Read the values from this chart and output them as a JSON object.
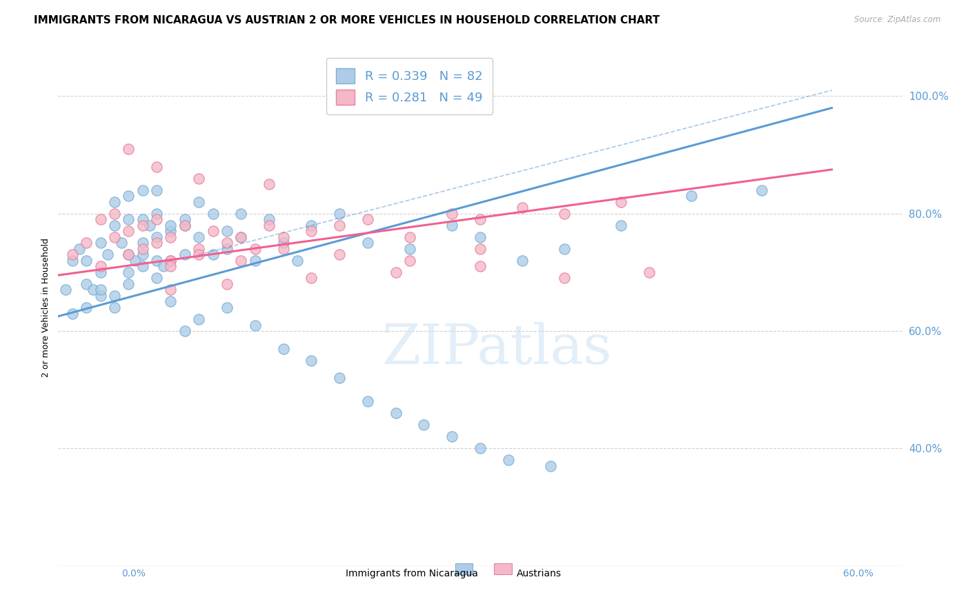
{
  "title": "IMMIGRANTS FROM NICARAGUA VS AUSTRIAN 2 OR MORE VEHICLES IN HOUSEHOLD CORRELATION CHART",
  "source": "Source: ZipAtlas.com",
  "ylabel": "2 or more Vehicles in Household",
  "xmin": 0.0,
  "xmax": 0.06,
  "ymin": 0.2,
  "ymax": 1.08,
  "xtick_labels": [
    "0.0%",
    "",
    "",
    "",
    "",
    "",
    "",
    "",
    "",
    "",
    "",
    ""
  ],
  "xtick_values": [
    0.0,
    0.005,
    0.01,
    0.015,
    0.02,
    0.025,
    0.03,
    0.035,
    0.04,
    0.045,
    0.05,
    0.055
  ],
  "ytick_values_right": [
    0.4,
    0.6,
    0.8,
    1.0
  ],
  "ytick_labels_right": [
    "40.0%",
    "60.0%",
    "80.0%",
    "100.0%"
  ],
  "xaxis_bottom_labels": [
    "0.0%",
    "60.0%"
  ],
  "legend_label1": "Immigrants from Nicaragua",
  "legend_label2": "Austrians",
  "R1": 0.339,
  "N1": 82,
  "R2": 0.281,
  "N2": 49,
  "color1": "#aecce8",
  "color2": "#f4b8c8",
  "line1_color": "#5b9bd5",
  "line2_color": "#f06090",
  "scatter1_edge": "#7bafd4",
  "scatter2_edge": "#e8829a",
  "background_color": "#ffffff",
  "grid_color": "#d0d0d0",
  "watermark": "ZIPatlas",
  "title_fontsize": 11,
  "axis_label_fontsize": 9,
  "tick_fontsize": 9,
  "right_tick_color": "#5b9bd5",
  "scatter1_x": [
    0.0005,
    0.001,
    0.0015,
    0.002,
    0.002,
    0.0025,
    0.003,
    0.003,
    0.003,
    0.0035,
    0.004,
    0.004,
    0.004,
    0.0045,
    0.005,
    0.005,
    0.005,
    0.005,
    0.0055,
    0.006,
    0.006,
    0.006,
    0.006,
    0.0065,
    0.007,
    0.007,
    0.007,
    0.007,
    0.0075,
    0.008,
    0.008,
    0.008,
    0.009,
    0.009,
    0.009,
    0.01,
    0.01,
    0.011,
    0.011,
    0.012,
    0.012,
    0.013,
    0.013,
    0.014,
    0.015,
    0.016,
    0.017,
    0.018,
    0.02,
    0.022,
    0.025,
    0.028,
    0.03,
    0.033,
    0.036,
    0.04,
    0.045,
    0.05,
    0.001,
    0.002,
    0.003,
    0.004,
    0.005,
    0.006,
    0.007,
    0.008,
    0.009,
    0.01,
    0.012,
    0.014,
    0.016,
    0.018,
    0.02,
    0.022,
    0.024,
    0.026,
    0.028,
    0.03,
    0.032,
    0.035
  ],
  "scatter1_y": [
    0.67,
    0.72,
    0.74,
    0.68,
    0.72,
    0.67,
    0.75,
    0.7,
    0.66,
    0.73,
    0.78,
    0.64,
    0.82,
    0.75,
    0.79,
    0.73,
    0.83,
    0.7,
    0.72,
    0.75,
    0.79,
    0.84,
    0.71,
    0.78,
    0.76,
    0.72,
    0.84,
    0.8,
    0.71,
    0.72,
    0.77,
    0.78,
    0.73,
    0.78,
    0.79,
    0.82,
    0.76,
    0.8,
    0.73,
    0.74,
    0.77,
    0.8,
    0.76,
    0.72,
    0.79,
    0.75,
    0.72,
    0.78,
    0.8,
    0.75,
    0.74,
    0.78,
    0.76,
    0.72,
    0.74,
    0.78,
    0.83,
    0.84,
    0.63,
    0.64,
    0.67,
    0.66,
    0.68,
    0.73,
    0.69,
    0.65,
    0.6,
    0.62,
    0.64,
    0.61,
    0.57,
    0.55,
    0.52,
    0.48,
    0.46,
    0.44,
    0.42,
    0.4,
    0.38,
    0.37
  ],
  "scatter2_x": [
    0.001,
    0.002,
    0.003,
    0.003,
    0.004,
    0.004,
    0.005,
    0.005,
    0.006,
    0.006,
    0.007,
    0.007,
    0.008,
    0.008,
    0.009,
    0.01,
    0.011,
    0.012,
    0.013,
    0.014,
    0.015,
    0.016,
    0.018,
    0.02,
    0.022,
    0.025,
    0.028,
    0.03,
    0.033,
    0.036,
    0.04,
    0.008,
    0.01,
    0.013,
    0.016,
    0.02,
    0.025,
    0.03,
    0.008,
    0.012,
    0.018,
    0.024,
    0.03,
    0.036,
    0.042,
    0.005,
    0.007,
    0.01,
    0.015
  ],
  "scatter2_y": [
    0.73,
    0.75,
    0.71,
    0.79,
    0.8,
    0.76,
    0.73,
    0.77,
    0.78,
    0.74,
    0.75,
    0.79,
    0.72,
    0.76,
    0.78,
    0.74,
    0.77,
    0.75,
    0.76,
    0.74,
    0.78,
    0.76,
    0.77,
    0.78,
    0.79,
    0.76,
    0.8,
    0.79,
    0.81,
    0.8,
    0.82,
    0.71,
    0.73,
    0.72,
    0.74,
    0.73,
    0.72,
    0.74,
    0.67,
    0.68,
    0.69,
    0.7,
    0.71,
    0.69,
    0.7,
    0.91,
    0.88,
    0.86,
    0.85
  ],
  "line1_x": [
    0.0,
    0.055
  ],
  "line1_y": [
    0.625,
    0.98
  ],
  "line2_x": [
    0.0,
    0.055
  ],
  "line2_y": [
    0.695,
    0.875
  ],
  "dashed_line_x": [
    0.01,
    0.055
  ],
  "dashed_line_y": [
    0.73,
    1.01
  ]
}
